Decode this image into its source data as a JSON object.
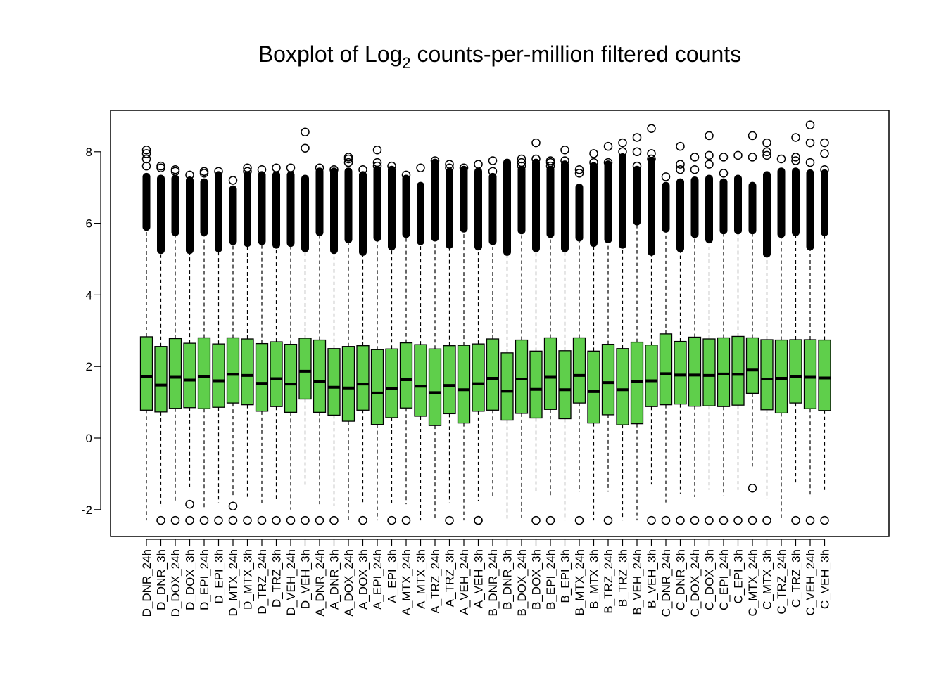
{
  "chart_data": {
    "type": "boxplot",
    "title": "Boxplot of Log",
    "title_subscript": "2",
    "title_suffix": " counts-per-million filtered counts",
    "xlabel": "",
    "ylabel": "",
    "ylim": [
      -2.7,
      8.9
    ],
    "yticks": [
      -2,
      0,
      2,
      4,
      6,
      8
    ],
    "grid": false,
    "box_color": "#5FCF4B",
    "categories": [
      "D_DNR_24h",
      "D_DNR_3h",
      "D_DOX_24h",
      "D_DOX_3h",
      "D_EPI_24h",
      "D_EPI_3h",
      "D_MTX_24h",
      "D_MTX_3h",
      "D_TRZ_24h",
      "D_TRZ_3h",
      "D_VEH_24h",
      "D_VEH_3h",
      "A_DNR_24h",
      "A_DNR_3h",
      "A_DOX_24h",
      "A_DOX_3h",
      "A_EPI_24h",
      "A_EPI_3h",
      "A_MTX_24h",
      "A_MTX_3h",
      "A_TRZ_24h",
      "A_TRZ_3h",
      "A_VEH_24h",
      "A_VEH_3h",
      "B_DNR_24h",
      "B_DNR_3h",
      "B_DOX_24h",
      "B_DOX_3h",
      "B_EPI_24h",
      "B_EPI_3h",
      "B_MTX_24h",
      "B_MTX_3h",
      "B_TRZ_24h",
      "B_TRZ_3h",
      "B_VEH_24h",
      "B_VEH_3h",
      "C_DNR_24h",
      "C_DNR_3h",
      "C_DOX_24h",
      "C_DOX_3h",
      "C_EPI_24h",
      "C_EPI_3h",
      "C_MTX_24h",
      "C_MTX_3h",
      "C_TRZ_24h",
      "C_TRZ_3h",
      "C_VEH_24h",
      "C_VEH_3h"
    ],
    "q1": [
      0.78,
      0.73,
      0.83,
      0.85,
      0.82,
      0.86,
      0.98,
      0.93,
      0.75,
      0.88,
      0.72,
      1.09,
      0.72,
      0.64,
      0.47,
      0.78,
      0.38,
      0.57,
      0.84,
      0.61,
      0.35,
      0.68,
      0.42,
      0.75,
      0.78,
      0.5,
      0.69,
      0.56,
      0.8,
      0.54,
      0.98,
      0.42,
      0.65,
      0.37,
      0.4,
      0.88,
      0.93,
      0.95,
      0.89,
      0.9,
      0.88,
      0.92,
      1.25,
      0.79,
      0.7,
      0.98,
      0.82,
      0.77
    ],
    "median": [
      1.72,
      1.48,
      1.7,
      1.62,
      1.72,
      1.6,
      1.78,
      1.75,
      1.53,
      1.66,
      1.51,
      1.87,
      1.59,
      1.42,
      1.4,
      1.51,
      1.26,
      1.38,
      1.63,
      1.45,
      1.27,
      1.47,
      1.35,
      1.52,
      1.67,
      1.31,
      1.65,
      1.36,
      1.7,
      1.35,
      1.75,
      1.3,
      1.55,
      1.35,
      1.59,
      1.6,
      1.8,
      1.76,
      1.76,
      1.75,
      1.79,
      1.78,
      1.9,
      1.65,
      1.67,
      1.72,
      1.7,
      1.68
    ],
    "q3": [
      2.83,
      2.56,
      2.78,
      2.65,
      2.8,
      2.63,
      2.8,
      2.77,
      2.64,
      2.69,
      2.62,
      2.79,
      2.74,
      2.5,
      2.56,
      2.58,
      2.47,
      2.49,
      2.66,
      2.61,
      2.49,
      2.58,
      2.59,
      2.63,
      2.77,
      2.38,
      2.74,
      2.43,
      2.8,
      2.44,
      2.8,
      2.43,
      2.62,
      2.5,
      2.68,
      2.6,
      2.91,
      2.7,
      2.82,
      2.77,
      2.8,
      2.84,
      2.8,
      2.75,
      2.74,
      2.75,
      2.75,
      2.74
    ],
    "whisker_high": [
      5.9,
      5.25,
      5.75,
      5.25,
      5.75,
      5.3,
      5.5,
      5.45,
      5.5,
      5.4,
      5.45,
      5.3,
      5.75,
      5.25,
      5.55,
      5.2,
      5.6,
      5.35,
      5.7,
      5.5,
      5.6,
      5.4,
      5.85,
      5.35,
      5.5,
      5.2,
      5.8,
      5.3,
      5.7,
      5.3,
      5.6,
      5.45,
      5.55,
      5.4,
      6.05,
      5.2,
      5.85,
      5.3,
      5.7,
      5.55,
      5.8,
      5.8,
      5.8,
      5.15,
      5.7,
      5.75,
      5.35,
      5.75
    ],
    "whisker_low": [
      -2.3,
      -1.85,
      -1.8,
      -1.4,
      -2.0,
      -1.8,
      -1.6,
      -1.7,
      -1.9,
      -1.75,
      -2.0,
      -1.35,
      -1.85,
      -1.9,
      -2.3,
      -1.8,
      -2.3,
      -1.85,
      -1.85,
      -2.3,
      -2.3,
      -1.8,
      -2.3,
      -1.75,
      -1.7,
      -2.3,
      -2.3,
      -1.5,
      -1.6,
      -2.3,
      -1.5,
      -2.3,
      -1.5,
      -2.3,
      -2.3,
      -1.3,
      -1.8,
      -1.55,
      -1.65,
      -1.45,
      -1.6,
      -1.45,
      -0.85,
      -1.7,
      -2.3,
      -1.25,
      -1.6,
      -1.5
    ],
    "outlier_top": [
      7.3,
      7.25,
      7.25,
      7.2,
      7.15,
      7.35,
      6.95,
      7.35,
      7.35,
      7.35,
      7.35,
      7.25,
      7.45,
      7.45,
      7.45,
      7.35,
      7.5,
      7.5,
      7.25,
      7.05,
      7.7,
      7.45,
      7.5,
      7.45,
      7.3,
      7.7,
      7.5,
      7.7,
      7.5,
      7.65,
      7.0,
      7.6,
      7.65,
      7.85,
      7.5,
      7.75,
      7.05,
      7.15,
      7.2,
      7.25,
      7.15,
      7.25,
      7.05,
      7.35,
      7.45,
      7.45,
      7.4,
      7.4
    ],
    "outlier_extra": [
      [
        7.6,
        7.8,
        7.95,
        8.05
      ],
      [
        7.55,
        7.6
      ],
      [
        7.45,
        7.5
      ],
      [
        7.35
      ],
      [
        7.4,
        7.45
      ],
      [
        7.45
      ],
      [
        7.2
      ],
      [
        7.45,
        7.55
      ],
      [
        7.5
      ],
      [
        7.55
      ],
      [
        7.55
      ],
      [
        8.1,
        8.55
      ],
      [
        7.55
      ],
      [
        7.5
      ],
      [
        7.7,
        7.8,
        7.85
      ],
      [
        7.5
      ],
      [
        7.6,
        7.7,
        8.05
      ],
      [
        7.6
      ],
      [
        7.35
      ],
      [
        7.55
      ],
      [
        7.75
      ],
      [
        7.55,
        7.65
      ],
      [
        7.55
      ],
      [
        7.65
      ],
      [
        7.45,
        7.75
      ],
      [],
      [
        7.6,
        7.7,
        7.8
      ],
      [
        7.8,
        8.25
      ],
      [
        7.6,
        7.7,
        7.75
      ],
      [
        7.75,
        8.05
      ],
      [
        7.4,
        7.5
      ],
      [
        7.7,
        7.95
      ],
      [
        7.7,
        8.15
      ],
      [
        8.0,
        8.25
      ],
      [
        7.6,
        8.0,
        8.4
      ],
      [
        7.8,
        7.95,
        8.65
      ],
      [
        7.3
      ],
      [
        7.5,
        7.65,
        8.15
      ],
      [
        7.5,
        7.85
      ],
      [
        7.65,
        7.9,
        8.45
      ],
      [
        7.4,
        7.85
      ],
      [
        7.9
      ],
      [
        7.85,
        8.45
      ],
      [
        7.9,
        8.0,
        8.25
      ],
      [
        7.8
      ],
      [
        7.75,
        7.85,
        8.4
      ],
      [
        7.7,
        8.25,
        8.75
      ],
      [
        7.5,
        7.95,
        8.25
      ]
    ],
    "outlier_low": [
      [],
      [
        -2.3
      ],
      [
        -2.3
      ],
      [
        -1.85,
        -2.3
      ],
      [
        -2.3
      ],
      [
        -2.3
      ],
      [
        -1.9,
        -2.3
      ],
      [
        -2.3
      ],
      [
        -2.3
      ],
      [
        -2.3
      ],
      [
        -2.3
      ],
      [
        -2.3
      ],
      [
        -2.3
      ],
      [
        -2.3
      ],
      [],
      [
        -2.3
      ],
      [],
      [
        -2.3
      ],
      [
        -2.3
      ],
      [],
      [],
      [
        -2.3
      ],
      [],
      [
        -2.3,
        -2.3
      ],
      [],
      [],
      [],
      [
        -2.3
      ],
      [
        -2.3
      ],
      [],
      [
        -2.3
      ],
      [],
      [
        -2.3
      ],
      [],
      [],
      [
        -2.3
      ],
      [
        -2.3
      ],
      [
        -2.3
      ],
      [
        -2.3
      ],
      [
        -2.3
      ],
      [
        -2.3
      ],
      [
        -2.3
      ],
      [
        -1.4,
        -2.3
      ],
      [
        -2.3
      ],
      [],
      [
        -2.3
      ],
      [
        -2.3
      ],
      [
        -2.3
      ]
    ]
  }
}
